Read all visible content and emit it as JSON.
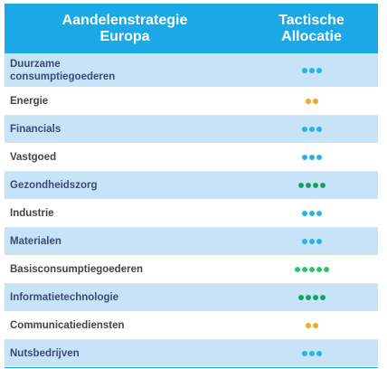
{
  "header": {
    "sector_line1": "Aandelenstrategie",
    "sector_line2": "Europa",
    "allocation_line1": "Tactische",
    "allocation_line2": "Allocatie"
  },
  "colors": {
    "header_bg": "#1aa9e6",
    "row_shaded": "#c7e3f8",
    "neutral_dots": "#29b2e8",
    "underweight_dots": "#f5a623",
    "overweight_dots": "#12a36b",
    "strong_overweight_dots": "#2ec26a"
  },
  "rows": [
    {
      "label": "Duurzame consumptiegoederen",
      "dots": 3,
      "dot_color": "#29b2e8"
    },
    {
      "label": "Energie",
      "dots": 2,
      "dot_color": "#f5a623"
    },
    {
      "label": "Financials",
      "dots": 3,
      "dot_color": "#29b2e8"
    },
    {
      "label": "Vastgoed",
      "dots": 3,
      "dot_color": "#29b2e8"
    },
    {
      "label": "Gezondheidszorg",
      "dots": 4,
      "dot_color": "#12a36b"
    },
    {
      "label": "Industrie",
      "dots": 3,
      "dot_color": "#29b2e8"
    },
    {
      "label": "Materialen",
      "dots": 3,
      "dot_color": "#29b2e8"
    },
    {
      "label": "Basisconsumptiegoederen",
      "dots": 5,
      "dot_color": "#2ec26a"
    },
    {
      "label": "Informatietechnologie",
      "dots": 4,
      "dot_color": "#12a36b"
    },
    {
      "label": "Communicatiediensten",
      "dots": 2,
      "dot_color": "#f5a623"
    },
    {
      "label": "Nutsbedrijven",
      "dots": 3,
      "dot_color": "#29b2e8"
    }
  ]
}
